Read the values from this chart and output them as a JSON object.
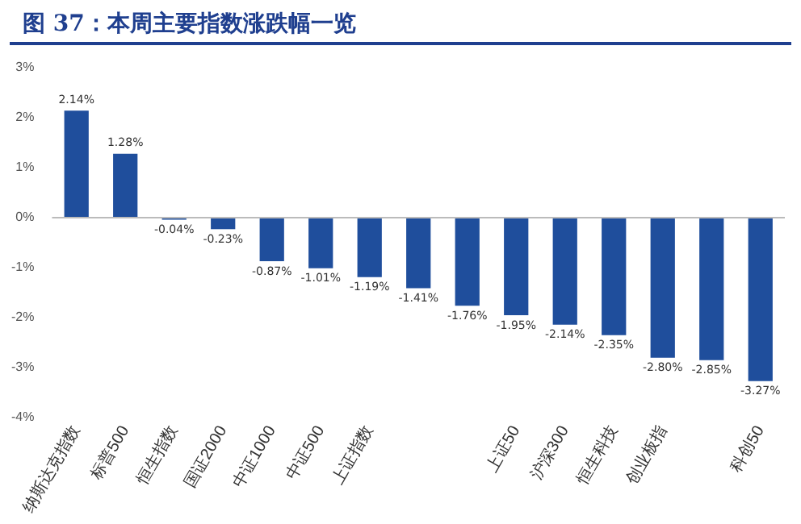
{
  "chart_data": {
    "type": "bar",
    "title": "图 37：本周主要指数涨跌幅一览",
    "categories": [
      "纳斯达克指数",
      "标普500",
      "恒生指数",
      "国证2000",
      "中证1000",
      "中证500",
      "上证指数",
      null,
      null,
      "上证50",
      "沪深300",
      "恒生科技",
      "创业板指",
      null,
      "科创50"
    ],
    "values": [
      2.14,
      1.28,
      -0.04,
      -0.23,
      -0.87,
      -1.01,
      -1.19,
      -1.41,
      -1.76,
      -1.95,
      -2.14,
      -2.35,
      -2.8,
      -2.85,
      -3.27
    ],
    "value_labels": [
      "2.14%",
      "1.28%",
      "-0.04%",
      "-0.23%",
      "-0.87%",
      "-1.01%",
      "-1.19%",
      "-1.41%",
      "-1.76%",
      "-1.95%",
      "-2.14%",
      "-2.35%",
      "-2.80%",
      "-2.85%",
      "-3.27%"
    ],
    "color": "#1f4e9c",
    "ylim": [
      -4,
      3
    ],
    "yticks": [
      {
        "value": -4,
        "label": "-4%"
      },
      {
        "value": -3,
        "label": "-3%"
      },
      {
        "value": -2,
        "label": "-2%"
      },
      {
        "value": -1,
        "label": "-1%"
      },
      {
        "value": 0,
        "label": "0%"
      },
      {
        "value": 1,
        "label": "1%"
      },
      {
        "value": 2,
        "label": "2%"
      },
      {
        "value": 3,
        "label": "3%"
      }
    ],
    "ref_lines": [
      {
        "axis": "y",
        "value": 0,
        "color": "#bbbbbb"
      }
    ],
    "grid": false,
    "legend": false
  }
}
